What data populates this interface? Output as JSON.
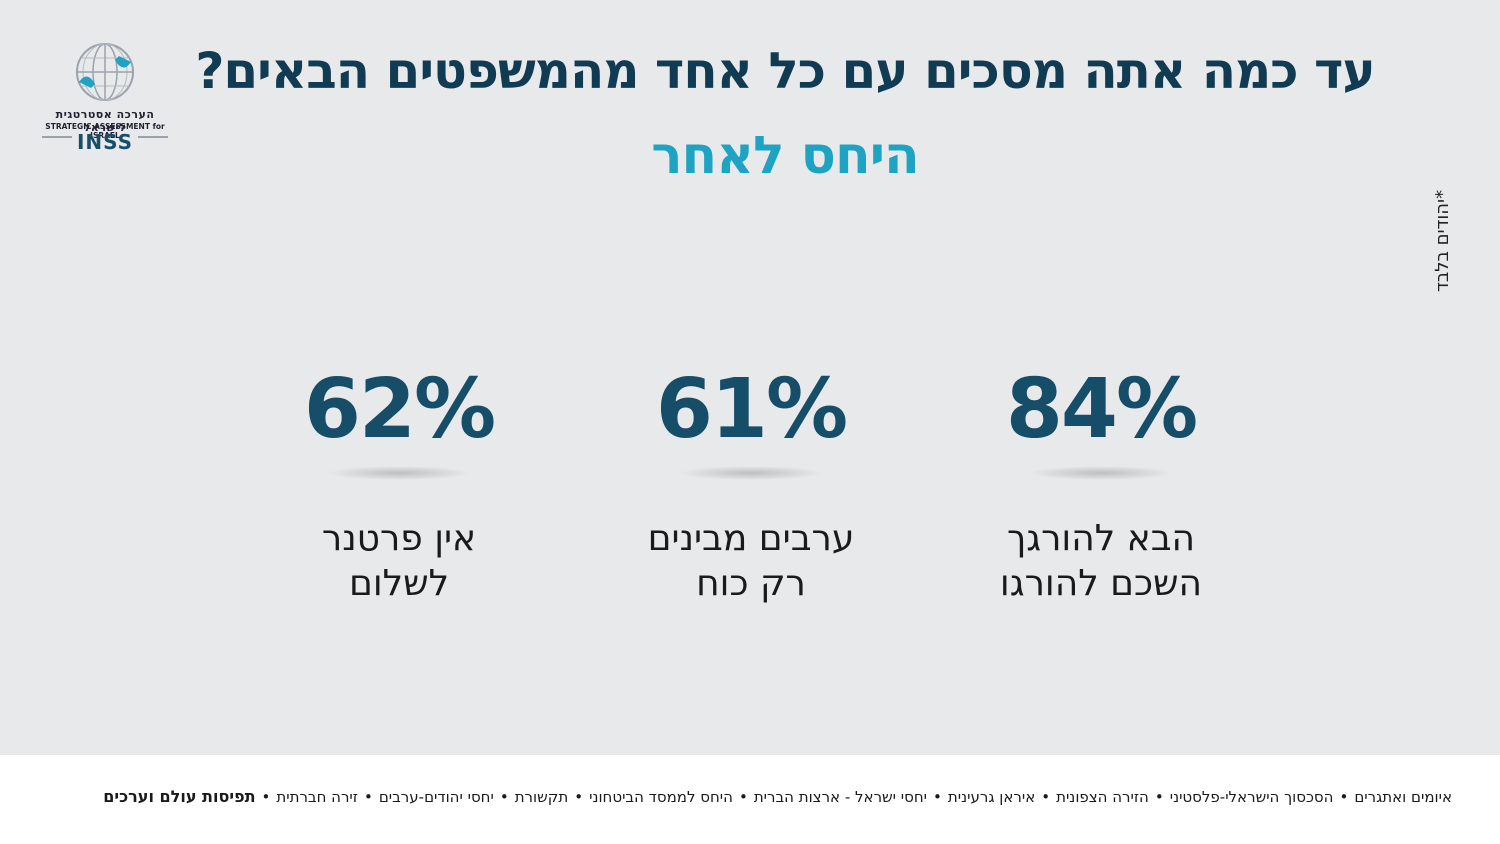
{
  "logo": {
    "hebrew": "הערכה אסטרטגית לישראל",
    "english": "STRATEGIC ASSESSMENT for ISRAEL",
    "brand": "INSS"
  },
  "title": "עד כמה אתה מסכים עם כל אחד מהמשפטים הבאים?",
  "subtitle": "היחס לאחר",
  "side_note": "*יהודים בלבד",
  "stats": [
    {
      "value": "84%",
      "label_line1": "הבא להורגך",
      "label_line2": "השכם להורגו"
    },
    {
      "value": "61%",
      "label_line1": "ערבים מבינים",
      "label_line2": "רק כוח"
    },
    {
      "value": "62%",
      "label_line1": "אין פרטנר",
      "label_line2": "לשלום"
    }
  ],
  "footer": {
    "items": [
      "איומים ואתגרים",
      "הסכסוך הישראלי-פלסטיני",
      "הזירה הצפונית",
      "איראן גרעינית",
      "יחסי ישראל - ארצות הברית",
      "היחס לממסד הביטחוני",
      "תקשורת",
      "יחסי יהודים-ערבים",
      "זירה חברתית",
      "תפיסות עולם וערכים"
    ],
    "separator": "•"
  },
  "colors": {
    "background": "#e8e9eb",
    "title": "#113b52",
    "subtitle": "#1ea3c3",
    "value": "#164d68"
  }
}
